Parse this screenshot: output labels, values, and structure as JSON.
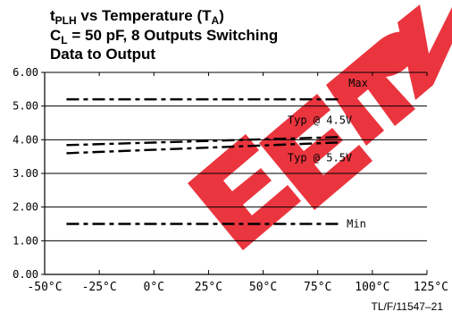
{
  "title_lines": {
    "line1_main": "t",
    "line1_sub": "PLH",
    "line1_mid": " vs Temperature (T",
    "line1_sub2": "A",
    "line1_end": ")",
    "line2_main": "C",
    "line2_sub": "L",
    "line2_end": " = 50 pF, 8 Outputs Switching",
    "line3": "Data to Output"
  },
  "figure_code": "TL/F/11547–21",
  "colors": {
    "axis": "#000000",
    "series": "#000000",
    "watermark": "#e8202a"
  },
  "chart_data": {
    "type": "line",
    "x_tick_labels": [
      "-50°C",
      "-25°C",
      "0°C",
      "25°C",
      "50°C",
      "75°C",
      "100°C",
      "125°C"
    ],
    "x_ticks": [
      -50,
      -25,
      0,
      25,
      50,
      75,
      100,
      125
    ],
    "y_tick_labels": [
      "0.00",
      "1.00",
      "2.00",
      "3.00",
      "4.00",
      "5.00",
      "6.00"
    ],
    "y_ticks": [
      0,
      1,
      2,
      3,
      4,
      5,
      6
    ],
    "xlim": [
      -50,
      125
    ],
    "ylim": [
      0,
      6
    ],
    "grid": "horizontal",
    "line_style": "dashed",
    "series": [
      {
        "name": "Max",
        "x": [
          -40,
          85
        ],
        "values": [
          5.2,
          5.2
        ]
      },
      {
        "name": "Typ @ 4.5V",
        "x": [
          -40,
          85
        ],
        "values": [
          3.84,
          4.08
        ]
      },
      {
        "name": "Typ @ 5.5V",
        "x": [
          -40,
          85
        ],
        "values": [
          3.6,
          3.92
        ]
      },
      {
        "name": "Min",
        "x": [
          -40,
          85
        ],
        "values": [
          1.5,
          1.5
        ]
      }
    ]
  }
}
